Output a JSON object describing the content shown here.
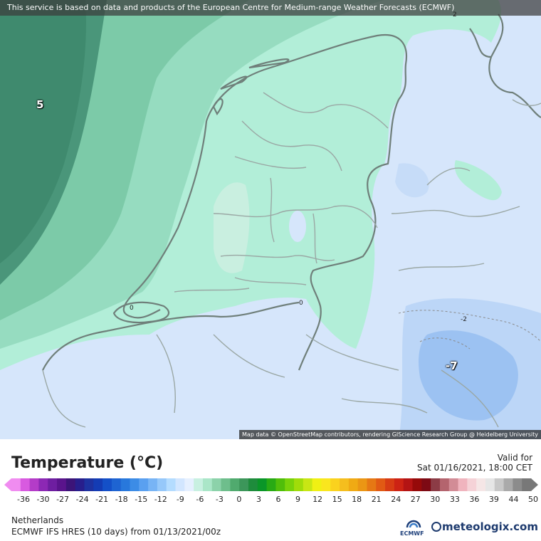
{
  "map": {
    "disclaimer": "This service is based on data and products of the European Centre for Medium-range Weather Forecasts (ECMWF)",
    "attribution": "Map data © OpenStreetMap contributors, rendering GIScience Research Group @ Heidelberg University",
    "value_labels": [
      {
        "text": "5"
      },
      {
        "text": "-7"
      }
    ],
    "isoline_labels": [
      {
        "text": "2"
      },
      {
        "text": "0"
      },
      {
        "text": "0"
      },
      {
        "text": "-2"
      }
    ]
  },
  "legend": {
    "title": "Temperature (°C)",
    "valid_label": "Valid for",
    "valid_time": "Sat 01/16/2021, 18:00 CET",
    "ticks": [
      "-36",
      "-30",
      "-27",
      "-24",
      "-21",
      "-18",
      "-15",
      "-12",
      "-9",
      "-6",
      "-3",
      "0",
      "3",
      "6",
      "9",
      "12",
      "15",
      "18",
      "21",
      "24",
      "27",
      "30",
      "33",
      "36",
      "39",
      "44",
      "50"
    ],
    "colors": [
      "#f08cf0",
      "#d85ae0",
      "#b43cc8",
      "#8c28b4",
      "#6e1ea0",
      "#5a148c",
      "#3c1478",
      "#281e8c",
      "#1e32a0",
      "#143cb4",
      "#1450c8",
      "#1e64d2",
      "#2878dc",
      "#3c8ce6",
      "#5aa0f0",
      "#78b4f5",
      "#96c8fa",
      "#b4dcff",
      "#d2e6ff",
      "#e6f0ff",
      "#c8f0e1",
      "#aae6c8",
      "#8cd2aa",
      "#6ebe8c",
      "#50aa6e",
      "#3c965a",
      "#1e8c3c",
      "#0a9628",
      "#28aa14",
      "#50be0a",
      "#78d20a",
      "#a0dc0a",
      "#c8e614",
      "#f0f014",
      "#fae61e",
      "#fad21e",
      "#f5be1e",
      "#f0aa14",
      "#eb9614",
      "#e67814",
      "#e15a14",
      "#d73c14",
      "#cd2314",
      "#b41414",
      "#960a0a",
      "#7d0a14",
      "#8c3c46",
      "#b4646e",
      "#d28c96",
      "#f0b4be",
      "#f5d2d7",
      "#f5e6e6",
      "#e6e6e6",
      "#c8c8c8",
      "#aaaaaa",
      "#8c8c8c",
      "#787878"
    ],
    "region": "Netherlands",
    "model": "ECMWF IFS HRES (10 days) from 01/13/2021/00z"
  },
  "branding": {
    "ecmwf": "ECMWF",
    "meteologix": "meteologix.com"
  }
}
